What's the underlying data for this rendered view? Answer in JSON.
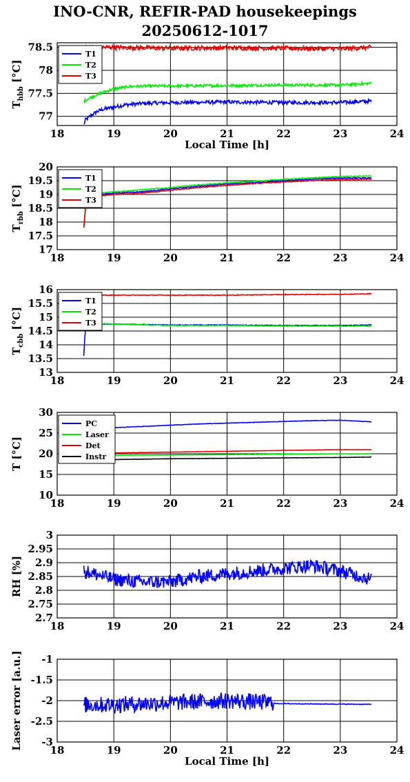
{
  "page": {
    "title_line1": "INO-CNR, REFIR-PAD housekeepings",
    "title_line2": "20250612-1017"
  },
  "chart_data": [
    {
      "id": "thbb",
      "type": "line",
      "xlim": [
        18,
        24
      ],
      "ylim": [
        76.8,
        78.6
      ],
      "xticks": [
        18,
        19,
        20,
        21,
        22,
        23,
        24
      ],
      "yticks": [
        77,
        77.5,
        78,
        78.5
      ],
      "ytick_labels": [
        "77",
        "77.5",
        "78",
        "78.5"
      ],
      "ylabel_main": "T",
      "ylabel_sub": "hbb",
      "ylabel_unit": " [°C]",
      "xlabel": "Local Time [h]",
      "grid": true,
      "legend_position": "top-left",
      "series": [
        {
          "name": "T1",
          "color": "#0000ff",
          "noise": 0.04,
          "x": [
            18.47,
            18.5,
            18.6,
            18.7,
            18.8,
            19.0,
            19.2,
            19.5,
            20.0,
            21.0,
            22.0,
            23.0,
            23.55
          ],
          "y": [
            76.82,
            76.92,
            77.02,
            77.1,
            77.15,
            77.2,
            77.25,
            77.28,
            77.3,
            77.31,
            77.3,
            77.3,
            77.33
          ]
        },
        {
          "name": "T2",
          "color": "#00ee00",
          "noise": 0.03,
          "x": [
            18.47,
            18.6,
            18.8,
            19.0,
            19.3,
            19.6,
            20.0,
            21.0,
            22.0,
            23.0,
            23.55
          ],
          "y": [
            77.33,
            77.42,
            77.52,
            77.6,
            77.65,
            77.66,
            77.66,
            77.67,
            77.68,
            77.68,
            77.72
          ]
        },
        {
          "name": "T3",
          "color": "#ee0000",
          "noise": 0.05,
          "x": [
            18.47,
            19.0,
            20.0,
            21.0,
            22.0,
            23.0,
            23.55
          ],
          "y": [
            78.5,
            78.5,
            78.48,
            78.49,
            78.48,
            78.47,
            78.5
          ]
        }
      ]
    },
    {
      "id": "trbb",
      "type": "line",
      "xlim": [
        18,
        24
      ],
      "ylim": [
        17,
        20
      ],
      "xticks": [
        18,
        19,
        20,
        21,
        22,
        23,
        24
      ],
      "yticks": [
        17,
        17.5,
        18,
        18.5,
        19,
        19.5,
        20
      ],
      "ytick_labels": [
        "17",
        "17.5",
        "18",
        "18.5",
        "19",
        "19.5",
        "20"
      ],
      "ylabel_main": "T",
      "ylabel_sub": "rbb",
      "ylabel_unit": " [°C]",
      "xlabel": "",
      "grid": true,
      "legend_position": "top-left",
      "series": [
        {
          "name": "T1",
          "color": "#0000ff",
          "noise": 0.015,
          "x": [
            18.47,
            18.5,
            18.55,
            19.0,
            19.5,
            20.0,
            20.5,
            21.0,
            21.5,
            22.0,
            22.5,
            23.0,
            23.55
          ],
          "y": [
            17.8,
            18.5,
            18.95,
            19.05,
            19.1,
            19.2,
            19.3,
            19.38,
            19.43,
            19.5,
            19.55,
            19.6,
            19.6
          ]
        },
        {
          "name": "T2",
          "color": "#00ee00",
          "noise": 0.015,
          "x": [
            18.47,
            18.5,
            18.55,
            19.0,
            19.5,
            20.0,
            20.5,
            21.0,
            21.5,
            22.0,
            22.5,
            23.0,
            23.55
          ],
          "y": [
            17.8,
            18.6,
            19.0,
            19.1,
            19.17,
            19.25,
            19.35,
            19.42,
            19.48,
            19.55,
            19.6,
            19.65,
            19.67
          ]
        },
        {
          "name": "T3",
          "color": "#ee0000",
          "noise": 0.015,
          "x": [
            18.47,
            18.5,
            18.55,
            19.0,
            19.5,
            20.0,
            20.5,
            21.0,
            21.5,
            22.0,
            22.5,
            23.0,
            23.55
          ],
          "y": [
            17.8,
            18.5,
            18.9,
            19.0,
            19.05,
            19.15,
            19.25,
            19.33,
            19.4,
            19.45,
            19.5,
            19.55,
            19.55
          ]
        }
      ]
    },
    {
      "id": "tcbb",
      "type": "line",
      "xlim": [
        18,
        24
      ],
      "ylim": [
        13,
        16
      ],
      "xticks": [
        18,
        19,
        20,
        21,
        22,
        23,
        24
      ],
      "yticks": [
        13,
        13.5,
        14,
        14.5,
        15,
        15.5,
        16
      ],
      "ytick_labels": [
        "13",
        "13.5",
        "14",
        "14.5",
        "15",
        "15.5",
        "16"
      ],
      "ylabel_main": "T",
      "ylabel_sub": "cbb",
      "ylabel_unit": " [°C]",
      "xlabel": "",
      "grid": true,
      "legend_position": "top-left",
      "series": [
        {
          "name": "T1",
          "color": "#0000ff",
          "noise": 0.012,
          "x": [
            18.47,
            18.48,
            18.5,
            18.55,
            19.0,
            20.0,
            21.0,
            22.0,
            23.0,
            23.55
          ],
          "y": [
            13.6,
            14.0,
            14.6,
            14.75,
            14.75,
            14.72,
            14.72,
            14.7,
            14.7,
            14.72
          ]
        },
        {
          "name": "T2",
          "color": "#00ee00",
          "noise": 0.015,
          "x": [
            18.47,
            18.5,
            18.55,
            19.0,
            20.0,
            21.0,
            22.0,
            23.0,
            23.55
          ],
          "y": [
            14.65,
            14.75,
            14.78,
            14.75,
            14.7,
            14.7,
            14.68,
            14.68,
            14.68
          ]
        },
        {
          "name": "T3",
          "color": "#ee0000",
          "noise": 0.012,
          "x": [
            18.47,
            19.0,
            20.0,
            21.0,
            22.0,
            23.0,
            23.55
          ],
          "y": [
            15.8,
            15.8,
            15.8,
            15.8,
            15.82,
            15.83,
            15.85
          ]
        }
      ]
    },
    {
      "id": "temps",
      "type": "line",
      "xlim": [
        18,
        24
      ],
      "ylim": [
        10,
        30
      ],
      "xticks": [
        18,
        19,
        20,
        21,
        22,
        23,
        24
      ],
      "yticks": [
        10,
        15,
        20,
        25,
        30
      ],
      "ytick_labels": [
        "10",
        "15",
        "20",
        "25",
        "30"
      ],
      "ylabel_main": "T [°C]",
      "ylabel_sub": "",
      "ylabel_unit": "",
      "xlabel": "",
      "grid": true,
      "legend_position": "top-left",
      "series": [
        {
          "name": "PC",
          "color": "#0000ff",
          "noise": 0.05,
          "x": [
            18.47,
            19.0,
            19.5,
            20.0,
            20.5,
            21.0,
            21.5,
            22.0,
            22.5,
            23.0,
            23.3,
            23.55
          ],
          "y": [
            25.8,
            26.3,
            26.6,
            26.9,
            27.2,
            27.4,
            27.6,
            27.8,
            28.0,
            28.1,
            27.9,
            27.7
          ]
        },
        {
          "name": "Laser",
          "color": "#00ee00",
          "noise": 0.04,
          "x": [
            18.47,
            19.0,
            20.0,
            21.0,
            22.0,
            23.0,
            23.55
          ],
          "y": [
            19.6,
            19.6,
            19.7,
            19.8,
            19.9,
            20.0,
            20.0
          ]
        },
        {
          "name": "Det",
          "color": "#ee0000",
          "noise": 0.03,
          "x": [
            18.47,
            19.0,
            20.0,
            21.0,
            22.0,
            23.0,
            23.55
          ],
          "y": [
            20.0,
            20.2,
            20.4,
            20.6,
            20.8,
            21.0,
            21.0
          ]
        },
        {
          "name": "Instr",
          "color": "#000000",
          "noise": 0.03,
          "x": [
            18.47,
            19.0,
            20.0,
            21.0,
            22.0,
            23.0,
            23.55
          ],
          "y": [
            18.5,
            18.6,
            18.8,
            18.9,
            19.0,
            19.1,
            19.2
          ]
        }
      ]
    },
    {
      "id": "rh",
      "type": "line",
      "xlim": [
        18,
        24
      ],
      "ylim": [
        2.7,
        3.0
      ],
      "xticks": [
        18,
        19,
        20,
        21,
        22,
        23,
        24
      ],
      "yticks": [
        2.7,
        2.75,
        2.8,
        2.85,
        2.9,
        2.95,
        3.0
      ],
      "ytick_labels": [
        "2.7",
        "2.75",
        "2.8",
        "2.85",
        "2.9",
        "2.95",
        "3"
      ],
      "ylabel_main": "RH [%]",
      "ylabel_sub": "",
      "ylabel_unit": "",
      "xlabel": "",
      "grid": true,
      "legend_position": "none",
      "series": [
        {
          "name": "",
          "color": "#0000ff",
          "noise": 0.025,
          "x": [
            18.47,
            19.0,
            19.5,
            20.0,
            20.5,
            21.0,
            21.5,
            22.0,
            22.5,
            23.0,
            23.55
          ],
          "y": [
            2.87,
            2.84,
            2.83,
            2.83,
            2.85,
            2.86,
            2.87,
            2.88,
            2.89,
            2.87,
            2.84
          ]
        }
      ]
    },
    {
      "id": "laser",
      "type": "line",
      "xlim": [
        18,
        24
      ],
      "ylim": [
        -3,
        -1
      ],
      "xticks": [
        18,
        19,
        20,
        21,
        22,
        23,
        24
      ],
      "yticks": [
        -3,
        -2.5,
        -2,
        -1.5,
        -1
      ],
      "ytick_labels": [
        "-3",
        "-2.5",
        "-2",
        "-1.5",
        "-1"
      ],
      "ylabel_main": "Laser error [a.u.]",
      "ylabel_sub": "",
      "ylabel_unit": "",
      "xlabel": "Local Time [h]",
      "grid": true,
      "legend_position": "none",
      "series": [
        {
          "name": "",
          "color": "#0000ff",
          "noise_segments": [
            [
              18.47,
              21.82,
              0.2
            ],
            [
              21.82,
              23.55,
              0.008
            ]
          ],
          "x": [
            18.47,
            19.0,
            20.0,
            21.0,
            21.82,
            21.85,
            22.5,
            23.55
          ],
          "y": [
            -2.1,
            -2.1,
            -2.05,
            -2.0,
            -2.05,
            -2.07,
            -2.08,
            -2.09
          ]
        }
      ]
    }
  ]
}
